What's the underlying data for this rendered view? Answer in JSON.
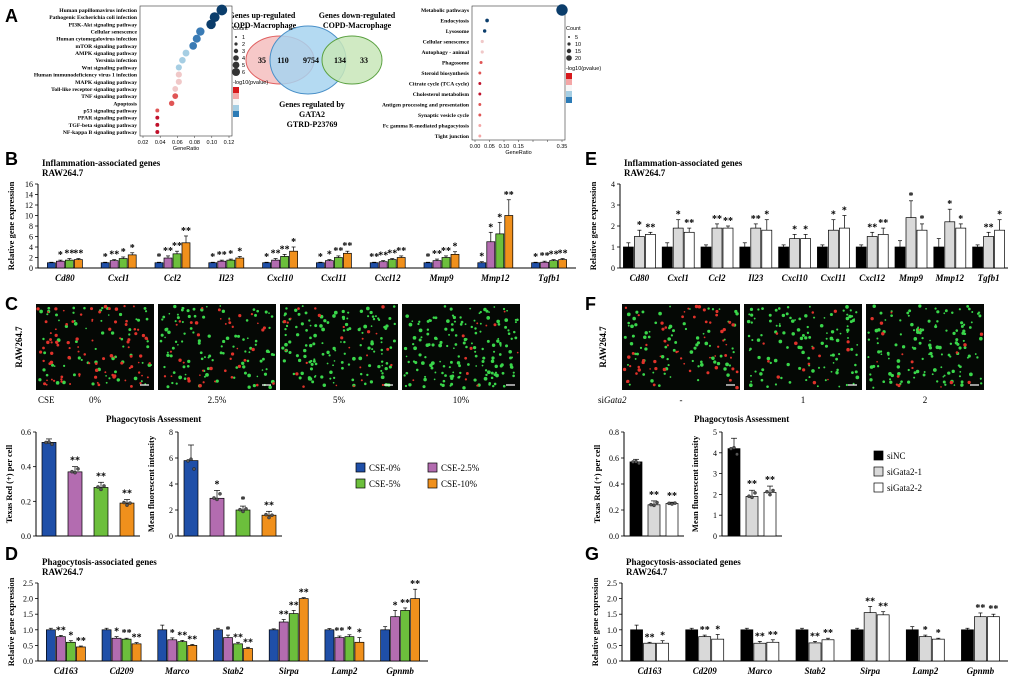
{
  "panels": {
    "A": "A",
    "B": "B",
    "C": "C",
    "D": "D",
    "E": "E",
    "F": "F",
    "G": "G"
  },
  "colors": {
    "c0": "#1f4fa8",
    "c1": "#b36cb0",
    "c2": "#6cbf3c",
    "c3": "#f0901c",
    "nc": "#000000",
    "g1": "#d9d9d9",
    "g2": "#ffffff"
  },
  "panelA": {
    "left_terms": [
      "Human papillomavirus infection",
      "Pathogenic Escherichia coli infection",
      "PI3K-Akt signaling pathway",
      "Cellular senescence",
      "Human cytomegalovirus infection",
      "mTOR signaling pathway",
      "AMPK signaling pathway",
      "Yersinia infection",
      "Wnt signaling pathway",
      "Human immunodeficiency virus 1 infection",
      "MAPK signaling pathway",
      "Toll-like receptor signaling pathway",
      "TNF signaling pathway",
      "Apoptosis",
      "p53 signaling pathway",
      "PPAR signaling pathway",
      "TGF-beta signaling pathway",
      "NF-kappa B signaling pathway"
    ],
    "left_ratio": [
      0.11,
      0.1,
      0.095,
      0.08,
      0.075,
      0.07,
      0.06,
      0.055,
      0.05,
      0.05,
      0.05,
      0.045,
      0.045,
      0.04,
      0.02,
      0.02,
      0.02,
      0.02
    ],
    "left_ticks": [
      "0.02",
      "0.04",
      "0.06",
      "0.08",
      "0.10",
      "0.12"
    ],
    "left_xlabel": "GeneRatio",
    "left_count_title": "Count",
    "left_count_vals": [
      "1",
      "2",
      "3",
      "4",
      "5",
      "6"
    ],
    "left_p_title": "-log10(pvalue)",
    "right_terms": [
      "Metabolic pathways",
      "Endocytosis",
      "Lysosome",
      "Cellular senescence",
      "Autophagy - animal",
      "Phagosome",
      "Steroid biosynthesis",
      "Citrate cycle (TCA cycle)",
      "Cholesterol metabolism",
      "Antigen processing and presentation",
      "Synaptic vesicle cycle",
      "Fc gamma R-mediated phagocytosis",
      "Tight junction"
    ],
    "right_ratio": [
      0.36,
      0.05,
      0.04,
      0.03,
      0.03,
      0.025,
      0.02,
      0.02,
      0.02,
      0.02,
      0.02,
      0.02,
      0.02
    ],
    "right_ticks": [
      "0.00",
      "0.05",
      "0.10",
      "0.15",
      "",
      "",
      "0.35"
    ],
    "right_xlabel": "GeneRatio",
    "right_count_title": "Count",
    "right_count_vals": [
      "5",
      "10",
      "15",
      "20"
    ],
    "right_p_title": "-log10(pvalue)",
    "venn_up": "Genes up-regulated\nCOPD-Macrophage",
    "venn_down": "Genes down-regulated\nCOPD-Macrophage",
    "venn_gata": "Genes regulated by\nGATA2\nGTRD-P23769",
    "venn_nums": [
      "35",
      "110",
      "9754",
      "134",
      "33"
    ]
  },
  "chart_data": [
    {
      "type": "bar",
      "panel": "B",
      "title": "Inflammation-associated genes",
      "subtitle": "RAW264.7",
      "ylabel": "Relative gene expression",
      "ylim": [
        0,
        16
      ],
      "yticks": [
        0,
        2,
        4,
        6,
        8,
        10,
        12,
        14,
        16
      ],
      "categories": [
        "Cd80",
        "Cxcl1",
        "Ccl2",
        "Il23",
        "Cxcl10",
        "Cxcl11",
        "Cxcl12",
        "Mmp9",
        "Mmp12",
        "Tgfb1"
      ],
      "series": [
        {
          "name": "CSE-0%",
          "values": [
            1,
            1,
            1,
            1,
            1,
            1,
            1,
            1,
            1,
            1
          ]
        },
        {
          "name": "CSE-2.5%",
          "values": [
            1.3,
            1.4,
            1.9,
            1.3,
            1.5,
            1.4,
            1.2,
            1.4,
            5,
            1.1
          ]
        },
        {
          "name": "CSE-5%",
          "values": [
            1.5,
            1.8,
            2.7,
            1.5,
            2.2,
            2.0,
            1.6,
            2.0,
            6.5,
            1.4
          ]
        },
        {
          "name": "CSE-10%",
          "values": [
            1.6,
            2.5,
            4.8,
            1.9,
            3.2,
            2.8,
            2.0,
            2.6,
            10,
            1.6
          ]
        }
      ],
      "errors": [
        [
          0.1,
          0.1,
          0.1,
          0.1,
          0.1,
          0.1,
          0.1,
          0.1,
          0.2,
          0.1
        ],
        [
          0.2,
          0.2,
          0.4,
          0.2,
          0.3,
          0.2,
          0.2,
          0.3,
          1.8,
          0.2
        ],
        [
          0.3,
          0.3,
          0.5,
          0.2,
          0.4,
          0.3,
          0.2,
          0.3,
          2.2,
          0.2
        ],
        [
          0.2,
          0.4,
          1.3,
          0.3,
          0.8,
          0.4,
          0.3,
          0.5,
          3.0,
          0.2
        ]
      ],
      "stars": [
        [
          "",
          "*",
          "*",
          "*",
          "*",
          "*",
          "**",
          "*",
          "*",
          "*"
        ],
        [
          "*",
          "**",
          "**",
          "**",
          "**",
          "*",
          "**",
          "**",
          "*",
          "**"
        ],
        [
          "**",
          "*",
          "**",
          "*",
          "**",
          "**",
          "**",
          "**",
          "*",
          "**"
        ],
        [
          "**",
          "*",
          "**",
          "*",
          "*",
          "**",
          "**",
          "*",
          "**",
          "**"
        ]
      ]
    },
    {
      "type": "bar",
      "panel": "E",
      "title": "Inflammation-associated genes",
      "subtitle": "RAW264.7",
      "ylabel": "Relative gene expression",
      "ylim": [
        0,
        4
      ],
      "yticks": [
        0,
        1,
        2,
        3,
        4
      ],
      "categories": [
        "Cd80",
        "Cxcl1",
        "Ccl2",
        "Il23",
        "Cxcl10",
        "Cxcl11",
        "Cxcl12",
        "Mmp9",
        "Mmp12",
        "Tgfb1"
      ],
      "series": [
        {
          "name": "siNC",
          "values": [
            1,
            1,
            1,
            1,
            1,
            1,
            1,
            1,
            1,
            1
          ]
        },
        {
          "name": "siGata2-1",
          "values": [
            1.5,
            1.9,
            1.9,
            1.9,
            1.4,
            1.8,
            1.5,
            2.4,
            2.2,
            1.5
          ]
        },
        {
          "name": "siGata2-2",
          "values": [
            1.6,
            1.7,
            1.9,
            1.8,
            1.4,
            1.9,
            1.6,
            1.8,
            1.9,
            1.8
          ]
        }
      ],
      "errors": [
        [
          0.2,
          0.2,
          0.1,
          0.2,
          0.1,
          0.1,
          0.1,
          0.3,
          0.4,
          0.1
        ],
        [
          0.3,
          0.4,
          0.2,
          0.2,
          0.2,
          0.5,
          0.2,
          0.8,
          0.6,
          0.2
        ],
        [
          0.1,
          0.2,
          0.1,
          0.5,
          0.2,
          0.6,
          0.3,
          0.3,
          0.2,
          0.5
        ]
      ],
      "stars": [
        [
          "",
          "",
          "",
          "",
          "",
          "",
          "",
          "",
          "",
          ""
        ],
        [
          "*",
          "*",
          "**",
          "**",
          "*",
          "*",
          "**",
          "*",
          "*",
          "**"
        ],
        [
          "**",
          "**",
          "**",
          "*",
          "*",
          "*",
          "**",
          "*",
          "*",
          "*"
        ]
      ]
    },
    {
      "type": "bar",
      "panel": "C-left",
      "title": "Phagocytosis Assessment",
      "ylabel": "Texas Red (+) per cell",
      "ylim": [
        0,
        0.6
      ],
      "yticks": [
        0,
        0.2,
        0.4,
        0.6
      ],
      "categories": [
        "CSE-0%",
        "CSE-2.5%",
        "CSE-5%",
        "CSE-10%"
      ],
      "values": [
        0.54,
        0.37,
        0.28,
        0.19
      ],
      "errors": [
        0.02,
        0.03,
        0.03,
        0.02
      ],
      "stars": [
        "",
        "**",
        "**",
        "**"
      ]
    },
    {
      "type": "bar",
      "panel": "C-right",
      "ylabel": "Mean fluorescent intensity",
      "ylim": [
        0,
        8
      ],
      "yticks": [
        0,
        2,
        4,
        6,
        8
      ],
      "categories": [
        "CSE-0%",
        "CSE-2.5%",
        "CSE-5%",
        "CSE-10%"
      ],
      "values": [
        5.8,
        2.9,
        2.0,
        1.6
      ],
      "errors": [
        1.2,
        0.6,
        0.3,
        0.3
      ],
      "stars": [
        "",
        "*",
        "*",
        "**"
      ]
    },
    {
      "type": "bar",
      "panel": "F-left",
      "title": "Phagocytosis Assessment",
      "ylabel": "Texas Red (+) per cell",
      "ylim": [
        0,
        0.8
      ],
      "yticks": [
        0,
        0.2,
        0.4,
        0.6,
        0.8
      ],
      "categories": [
        "siNC",
        "siGata2-1",
        "siGata2-2"
      ],
      "values": [
        0.57,
        0.24,
        0.25
      ],
      "errors": [
        0.02,
        0.03,
        0.01
      ],
      "stars": [
        "",
        "**",
        "**"
      ]
    },
    {
      "type": "bar",
      "panel": "F-right",
      "ylabel": "Mean fluorescent intensity",
      "ylim": [
        0,
        5
      ],
      "yticks": [
        0,
        1,
        2,
        3,
        4,
        5
      ],
      "categories": [
        "siNC",
        "siGata2-1",
        "siGata2-2"
      ],
      "values": [
        4.2,
        1.9,
        2.1
      ],
      "errors": [
        0.5,
        0.3,
        0.3
      ],
      "stars": [
        "",
        "**",
        "**"
      ]
    },
    {
      "type": "bar",
      "panel": "D",
      "title": "Phagocytosis-associated genes",
      "subtitle": "RAW264.7",
      "ylabel": "Relative gene expression",
      "ylim": [
        0,
        2.5
      ],
      "yticks": [
        0,
        0.5,
        1.0,
        1.5,
        2.0,
        2.5
      ],
      "categories": [
        "Cd163",
        "Cd209",
        "Marco",
        "Stab2",
        "Sirpa",
        "Lamp2",
        "Gpnmb"
      ],
      "series": [
        {
          "name": "CSE-0%",
          "values": [
            1,
            1,
            1,
            1,
            1,
            1,
            1
          ]
        },
        {
          "name": "CSE-2.5%",
          "values": [
            0.78,
            0.73,
            0.68,
            0.75,
            1.25,
            0.75,
            1.42
          ]
        },
        {
          "name": "CSE-5%",
          "values": [
            0.6,
            0.7,
            0.62,
            0.55,
            1.52,
            0.78,
            1.62
          ]
        },
        {
          "name": "CSE-10%",
          "values": [
            0.45,
            0.55,
            0.5,
            0.4,
            2.0,
            0.6,
            2.0
          ]
        }
      ],
      "errors": [
        [
          0.05,
          0.05,
          0.15,
          0.05,
          0.03,
          0.04,
          0.1
        ],
        [
          0.04,
          0.05,
          0.06,
          0.08,
          0.08,
          0.05,
          0.2
        ],
        [
          0.05,
          0.03,
          0.04,
          0.05,
          0.1,
          0.06,
          0.08
        ],
        [
          0.03,
          0.04,
          0.03,
          0.04,
          0.03,
          0.15,
          0.3
        ]
      ],
      "stars": [
        [
          "",
          "",
          "",
          "",
          "",
          "",
          ""
        ],
        [
          "**",
          "*",
          "*",
          "*",
          "**",
          "**",
          "*"
        ],
        [
          "*",
          "**",
          "**",
          "**",
          "**",
          "*",
          "**"
        ],
        [
          "**",
          "**",
          "**",
          "**",
          "**",
          "*",
          "**"
        ]
      ]
    },
    {
      "type": "bar",
      "panel": "G",
      "title": "Phagocytosis-associated genes",
      "subtitle": "RAW264.7",
      "ylabel": "Relative gene expression",
      "ylim": [
        0,
        2.5
      ],
      "yticks": [
        0,
        0.5,
        1.0,
        1.5,
        2.0,
        2.5
      ],
      "categories": [
        "Cd163",
        "Cd209",
        "Marco",
        "Stab2",
        "Sirpa",
        "Lamp2",
        "Gpnmb"
      ],
      "series": [
        {
          "name": "siNC",
          "values": [
            1,
            1,
            1,
            1,
            1,
            1,
            1
          ]
        },
        {
          "name": "siGata2-1",
          "values": [
            0.57,
            0.78,
            0.57,
            0.58,
            1.55,
            0.78,
            1.42
          ]
        },
        {
          "name": "siGata2-2",
          "values": [
            0.57,
            0.7,
            0.6,
            0.68,
            1.48,
            0.7,
            1.42
          ]
        }
      ],
      "errors": [
        [
          0.15,
          0.05,
          0.05,
          0.05,
          0.05,
          0.1,
          0.05
        ],
        [
          0.03,
          0.05,
          0.06,
          0.05,
          0.2,
          0.05,
          0.12
        ],
        [
          0.08,
          0.15,
          0.08,
          0.05,
          0.1,
          0.03,
          0.08
        ]
      ],
      "stars": [
        [
          "",
          "",
          "",
          "",
          "",
          "",
          ""
        ],
        [
          "**",
          "**",
          "**",
          "**",
          "**",
          "*",
          "**"
        ],
        [
          "*",
          "*",
          "**",
          "**",
          "**",
          "*",
          "**"
        ]
      ]
    }
  ],
  "C_conditions_label": "CSE",
  "C_conditions": [
    "0%",
    "2.5%",
    "5%",
    "10%"
  ],
  "C_ylabel": "RAW264.7",
  "F_conditions_label_prefix": "si",
  "F_conditions_label_gene": "Gata2",
  "F_conditions": [
    "-",
    "1",
    "2"
  ],
  "F_ylabel": "RAW264.7",
  "C_legend": [
    "CSE-0%",
    "CSE-2.5%",
    "CSE-5%",
    "CSE-10%"
  ],
  "F_legend": [
    "siNC",
    "siGata2-1",
    "siGata2-2"
  ]
}
